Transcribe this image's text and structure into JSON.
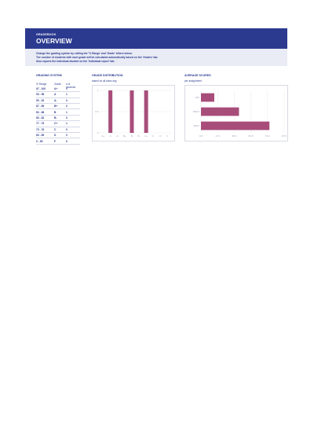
{
  "header": {
    "kicker": "GRADEBOOK",
    "title": "OVERVIEW"
  },
  "info": {
    "line1": "Change the grading system by editing the '% Range' and 'Grade' letters below.",
    "line2": "The number of students with each grade will be calculated automatically based on the 'Grades' tab.",
    "line3": "Also reports the individual student on the 'Individual report' tab."
  },
  "grading": {
    "title": "GRADING SYSTEM",
    "columns": [
      "% Range",
      "Grade",
      "# of students"
    ],
    "rows": [
      {
        "range": "97 - 100",
        "grade": "A+",
        "count": "0"
      },
      {
        "range": "93 - 96",
        "grade": "A",
        "count": "1"
      },
      {
        "range": "90 - 92",
        "grade": "A-",
        "count": "0"
      },
      {
        "range": "87 - 89",
        "grade": "B+",
        "count": "0"
      },
      {
        "range": "83 - 86",
        "grade": "B",
        "count": "1"
      },
      {
        "range": "80 - 82",
        "grade": "B-",
        "count": "0"
      },
      {
        "range": "77 - 79",
        "grade": "C+",
        "count": "1"
      },
      {
        "range": "70 - 76",
        "grade": "C",
        "count": "0"
      },
      {
        "range": "60 - 69",
        "grade": "D",
        "count": "0"
      },
      {
        "range": "0 - 59",
        "grade": "F",
        "count": "0"
      }
    ]
  },
  "distribution": {
    "title": "GRADE DISTRIBUTION",
    "subtitle": "based on all class avg."
  },
  "averages": {
    "title": "AVERAGE SCORES",
    "subtitle": "per assignment"
  },
  "chart_data": [
    {
      "type": "bar",
      "title": "GRADE DISTRIBUTION",
      "subtitle": "based on all class avg.",
      "categories": [
        "A+",
        "A",
        "A-",
        "B+",
        "B",
        "B-",
        "C+",
        "C",
        "D",
        "F"
      ],
      "values": [
        0,
        1,
        0,
        0,
        1,
        0,
        1,
        0,
        0,
        0
      ],
      "ylim": [
        0,
        1
      ],
      "yticks": [
        "0",
        "0.5",
        "1"
      ],
      "color": "#a84d7a",
      "grid": true
    },
    {
      "type": "bar",
      "orientation": "horizontal",
      "title": "AVERAGE SCORES",
      "subtitle": "per assignment",
      "categories": [
        "HW",
        "PROJ",
        "TEST"
      ],
      "values": [
        14,
        40,
        72
      ],
      "xlim": [
        0,
        87.5
      ],
      "xticks": [
        "0.0",
        "17.5",
        "35.0",
        "52.5",
        "70.0",
        "87.5"
      ],
      "color": "#a84d7a",
      "grid": true
    }
  ]
}
